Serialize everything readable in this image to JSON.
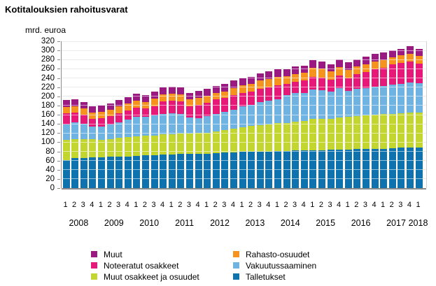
{
  "title": "Kotitalouksien rahoitusvarat",
  "y_axis_label": "mrd. euroa",
  "chart_data": {
    "type": "bar",
    "stacked": true,
    "grid": true,
    "ylim": [
      0,
      320
    ],
    "ytick_step": 20,
    "quarter_labels": [
      "1",
      "2",
      "3",
      "4",
      "1",
      "2",
      "3",
      "4",
      "1",
      "2",
      "3",
      "4",
      "1",
      "2",
      "3",
      "4",
      "1",
      "2",
      "3",
      "4",
      "1",
      "2",
      "3",
      "4",
      "1",
      "2",
      "3",
      "4",
      "1",
      "2",
      "3",
      "4",
      "1",
      "2",
      "3",
      "4",
      "1",
      "2",
      "3",
      "4",
      "1"
    ],
    "years": [
      {
        "label": "2008",
        "quarters": 4
      },
      {
        "label": "2009",
        "quarters": 4
      },
      {
        "label": "2010",
        "quarters": 4
      },
      {
        "label": "2011",
        "quarters": 4
      },
      {
        "label": "2012",
        "quarters": 4
      },
      {
        "label": "2013",
        "quarters": 4
      },
      {
        "label": "2014",
        "quarters": 4
      },
      {
        "label": "2015",
        "quarters": 4
      },
      {
        "label": "2016",
        "quarters": 4
      },
      {
        "label": "2017",
        "quarters": 4
      },
      {
        "label": "2018",
        "quarters": 1
      }
    ],
    "series": [
      {
        "name": "Talletukset",
        "color": "#0d72ae",
        "values": [
          61,
          65,
          65,
          67,
          67,
          68,
          68,
          69,
          70,
          71,
          71,
          73,
          73,
          74,
          74,
          75,
          75,
          76,
          77,
          78,
          79,
          80,
          80,
          80,
          81,
          81,
          82,
          82,
          83,
          83,
          84,
          84,
          84,
          85,
          85,
          86,
          86,
          87,
          88,
          88,
          89
        ]
      },
      {
        "name": "Muut osakkeet ja osuudet",
        "color": "#c3d62f",
        "values": [
          44,
          42,
          42,
          40,
          38,
          39,
          41,
          42,
          43,
          43,
          44,
          44,
          45,
          45,
          45,
          45,
          46,
          47,
          49,
          52,
          54,
          55,
          57,
          58,
          60,
          61,
          63,
          64,
          68,
          68,
          67,
          70,
          71,
          72,
          73,
          74,
          75,
          75,
          75,
          76,
          76
        ]
      },
      {
        "name": "Vakuutussaaminen",
        "color": "#6fb3e3",
        "values": [
          34,
          36,
          33,
          27,
          29,
          31,
          35,
          39,
          43,
          41,
          44,
          45,
          45,
          43,
          35,
          33,
          36,
          38,
          40,
          41,
          45,
          46,
          50,
          52,
          53,
          60,
          62,
          62,
          64,
          62,
          59,
          64,
          57,
          59,
          60,
          61,
          61,
          63,
          64,
          66,
          63
        ]
      },
      {
        "name": "Noteeratut osakkeet",
        "color": "#e61978",
        "values": [
          24,
          22,
          20,
          17,
          18,
          19,
          19,
          19,
          19,
          18,
          20,
          27,
          28,
          27,
          25,
          29,
          29,
          32,
          30,
          32,
          29,
          29,
          29,
          30,
          30,
          25,
          25,
          26,
          28,
          28,
          26,
          27,
          27,
          33,
          35,
          38,
          40,
          44,
          46,
          46,
          44
        ]
      },
      {
        "name": "Rahasto-osuudet",
        "color": "#f6921e",
        "values": [
          14,
          14,
          14,
          14,
          14,
          14,
          15,
          15,
          15,
          15,
          16,
          15,
          15,
          15,
          15,
          15,
          15,
          15,
          15,
          15,
          17,
          17,
          18,
          18,
          18,
          17,
          17,
          17,
          19,
          19,
          18,
          19,
          19,
          16,
          17,
          17,
          17,
          16,
          16,
          16,
          16
        ]
      },
      {
        "name": "Muut",
        "color": "#9b1a81",
        "values": [
          15,
          15,
          14,
          13,
          14,
          14,
          14,
          14,
          15,
          15,
          15,
          16,
          15,
          16,
          14,
          15,
          15,
          15,
          16,
          16,
          16,
          16,
          16,
          16,
          17,
          15,
          16,
          16,
          17,
          16,
          16,
          16,
          16,
          15,
          16,
          16,
          16,
          15,
          15,
          17,
          16
        ]
      }
    ]
  },
  "legend": {
    "columns": [
      [
        "Muut",
        "Noteeratut osakkeet",
        "Muut osakkeet ja osuudet"
      ],
      [
        "Rahasto-osuudet",
        "Vakuutussaaminen",
        "Talletukset"
      ]
    ]
  }
}
